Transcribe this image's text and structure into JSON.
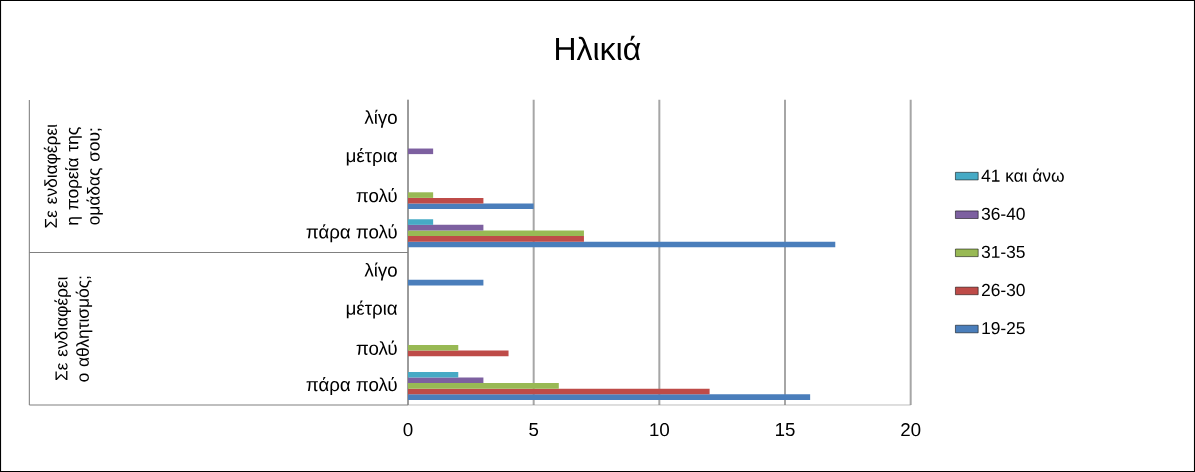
{
  "chart_data": {
    "type": "bar",
    "orientation": "horizontal",
    "title": "Ηλικιά",
    "categories": [
      "λίγο",
      "μέτρια",
      "πολύ",
      "πάρα πολύ",
      "λίγο",
      "μέτρια",
      "πολύ",
      "πάρα πολύ"
    ],
    "annotations": [
      "Σε ενδιαφέρει η πορεία της ομάδας σου;",
      "Σε ενδιαφέρει ο αθλητισμός;"
    ],
    "series": [
      {
        "name": "19-25",
        "color": "#4a7ebb",
        "values": [
          0,
          0,
          5,
          17,
          3,
          0,
          0,
          16
        ]
      },
      {
        "name": "26-30",
        "color": "#be4b48",
        "values": [
          0,
          0,
          3,
          7,
          0,
          0,
          4,
          12
        ]
      },
      {
        "name": "31-35",
        "color": "#98b954",
        "values": [
          0,
          0,
          1,
          7,
          0,
          0,
          2,
          6
        ]
      },
      {
        "name": "36-40",
        "color": "#7d60a0",
        "values": [
          0,
          1,
          0,
          3,
          0,
          0,
          0,
          3
        ]
      },
      {
        "name": "41 και άνω",
        "color": "#46aac5",
        "values": [
          0,
          0,
          0,
          1,
          0,
          0,
          0,
          2
        ]
      }
    ],
    "xlim": [
      0,
      20
    ],
    "xticks": [
      0,
      5,
      10,
      15,
      20
    ],
    "grid": "x",
    "legend": "right"
  }
}
